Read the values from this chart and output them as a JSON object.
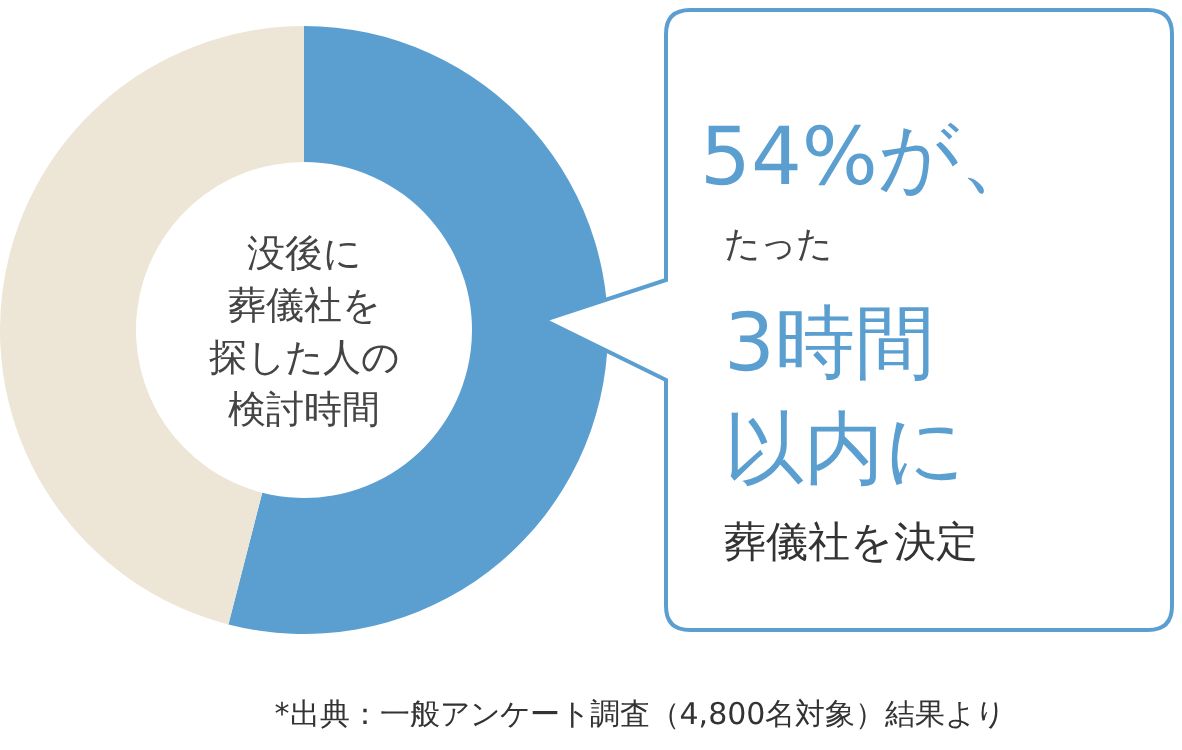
{
  "chart_data": {
    "type": "donut",
    "title": "没後に葬儀社を探した人の検討時間",
    "categories": [
      null,
      null
    ],
    "values": [
      54,
      46
    ],
    "colors": [
      "#5b9fd1",
      "#ede6d6"
    ],
    "annotations": [
      "54%が、",
      "たった",
      "3時間",
      "以内に",
      "葬儀社を決定",
      "*出典：一般アンケート調査（4,800名対象）結果より"
    ]
  }
}
